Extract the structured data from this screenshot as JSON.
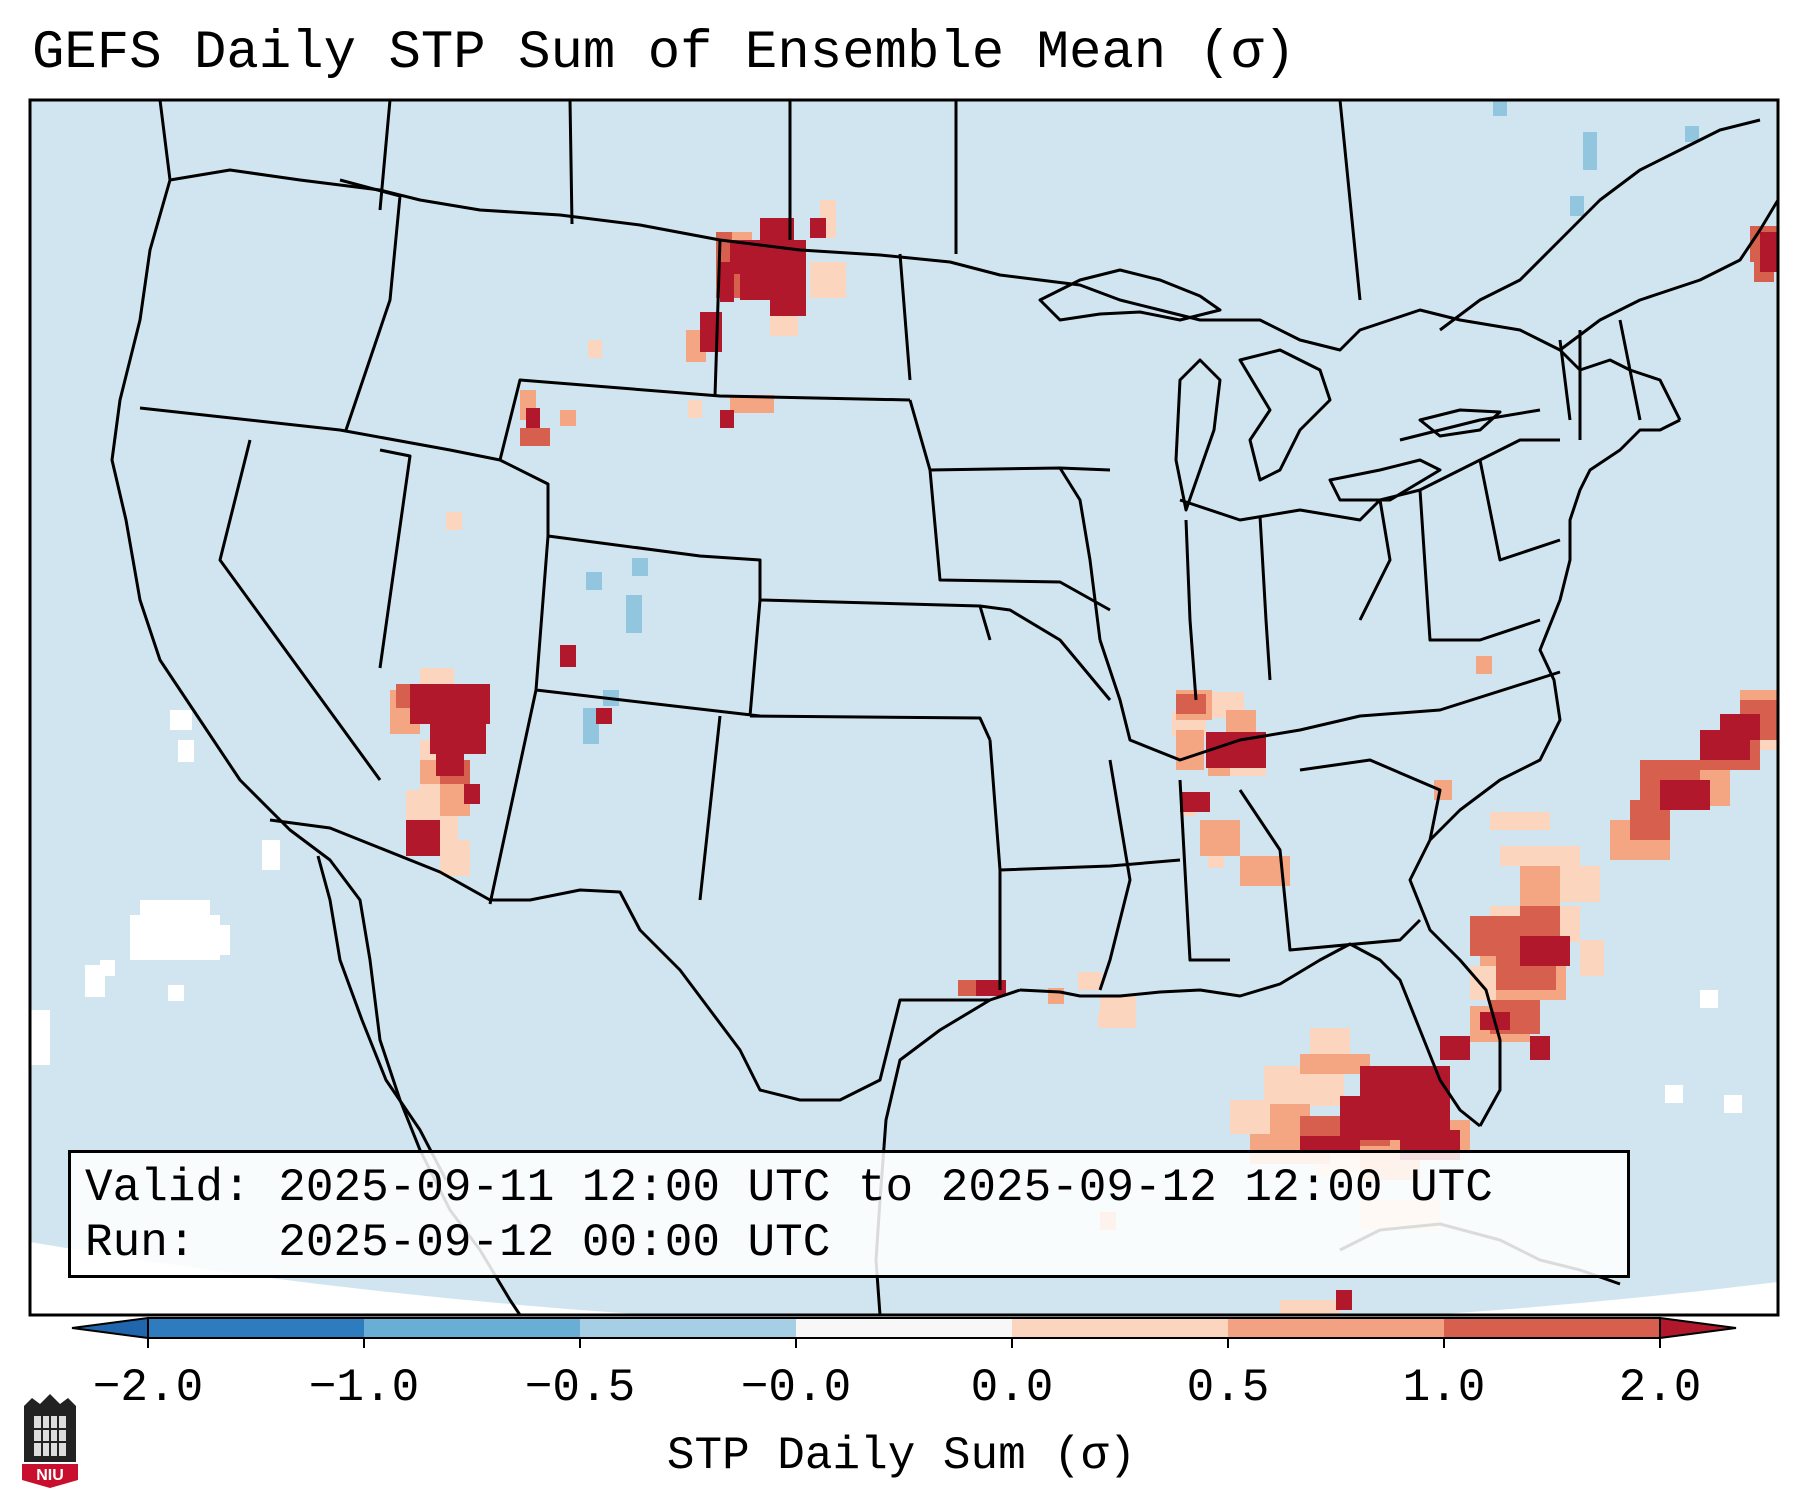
{
  "title": "GEFS Daily STP Sum of Ensemble Mean (σ)",
  "info": {
    "valid_label": "Valid:",
    "valid_text": "2025-09-11 12:00 UTC to 2025-09-12 12:00 UTC",
    "run_label": "Run:",
    "run_text": "2025-09-12 00:00 UTC"
  },
  "colorbar": {
    "label": "STP Daily Sum (σ)",
    "ticks": [
      "−2.0",
      "−1.0",
      "−0.5",
      "−0.0",
      "0.0",
      "0.5",
      "1.0",
      "2.0"
    ],
    "colors": [
      "#2e7bbd",
      "#6aaed6",
      "#a6cfe6",
      "#f7f7f7",
      "#fcd5bf",
      "#f2a282",
      "#d6604d",
      "#b2182b"
    ],
    "under_color": "#2166ac",
    "over_color": "#b2182b"
  },
  "map": {
    "ocean_color": "#d1e5f0",
    "land_color": "#d1e5f0",
    "outside_color": "#ffffff",
    "feature_regions": [
      "Montana–North Dakota border",
      "Wyoming",
      "Arizona",
      "Tennessee–Alabama",
      "Texas coast",
      "Florida peninsula",
      "Southeast Atlantic coast",
      "Western Atlantic",
      "New Brunswick / Nova Scotia"
    ]
  },
  "logo": {
    "text": "NIU"
  }
}
